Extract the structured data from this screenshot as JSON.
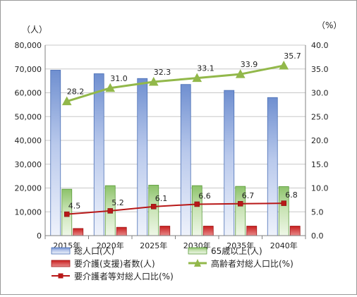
{
  "chart_data": {
    "type": "bar",
    "categories": [
      "2015年",
      "2020年",
      "2025年",
      "2030年",
      "2035年",
      "2040年"
    ],
    "left_unit": "（人）",
    "right_unit": "（%）",
    "left_ylim": [
      0,
      80000
    ],
    "right_ylim": [
      0,
      40
    ],
    "left_ticks": [
      "0",
      "10,000",
      "20,000",
      "30,000",
      "40,000",
      "50,000",
      "60,000",
      "70,000",
      "80,000"
    ],
    "right_ticks": [
      "0.0",
      "5.0",
      "10.0",
      "15.0",
      "20.0",
      "25.0",
      "30.0",
      "35.0",
      "40.0"
    ],
    "grid": true,
    "legend_position": "bottom",
    "series": [
      {
        "name": "総人口(人)",
        "kind": "bar",
        "axis": "left",
        "color": "#4a6fb5",
        "values": [
          69500,
          68000,
          66000,
          63500,
          61000,
          58000
        ]
      },
      {
        "name": "65歳以上(人)",
        "kind": "bar",
        "axis": "left",
        "color": "#5a9a3a",
        "values": [
          19500,
          21000,
          21200,
          21000,
          20700,
          20600
        ]
      },
      {
        "name": "要介護(支援)者数(人)",
        "kind": "bar",
        "axis": "left",
        "color": "#c81e1e",
        "values": [
          3000,
          3500,
          4000,
          4000,
          4000,
          4000
        ]
      },
      {
        "name": "高齢者対総人口比(%)",
        "kind": "line",
        "axis": "right",
        "color": "#92b84a",
        "marker": "triangle",
        "values": [
          28.2,
          31.0,
          32.3,
          33.1,
          33.9,
          35.7
        ],
        "labels": [
          "28.2",
          "31.0",
          "32.3",
          "33.1",
          "33.9",
          "35.7"
        ]
      },
      {
        "name": "要介護者等対総人口比(%)",
        "kind": "line",
        "axis": "right",
        "color": "#b81818",
        "marker": "square",
        "values": [
          4.5,
          5.2,
          6.1,
          6.6,
          6.7,
          6.8
        ],
        "labels": [
          "4.5",
          "5.2",
          "6.1",
          "6.6",
          "6.7",
          "6.8"
        ]
      }
    ]
  }
}
